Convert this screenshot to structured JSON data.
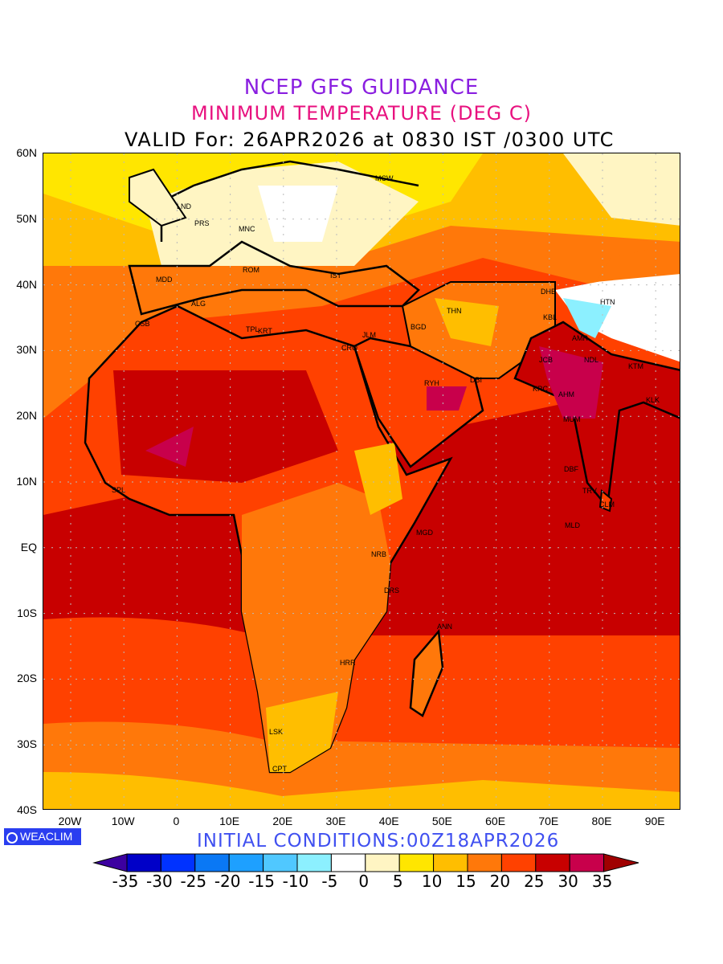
{
  "title": {
    "line1": "NCEP GFS GUIDANCE",
    "line2": "MINIMUM TEMPERATURE (DEG C)",
    "line3": "VALID For: 26APR2026 at 0830 IST /0300 UTC"
  },
  "axes": {
    "lat_labels": [
      "60N",
      "50N",
      "40N",
      "30N",
      "20N",
      "10N",
      "EQ",
      "10S",
      "20S",
      "30S",
      "40S"
    ],
    "lon_labels": [
      "20W",
      "10W",
      "0",
      "10E",
      "20E",
      "30E",
      "40E",
      "50E",
      "60E",
      "70E",
      "80E",
      "90E"
    ]
  },
  "cities": [
    "LND",
    "PRS",
    "MNC",
    "ROM",
    "MDD",
    "ALG",
    "CSB",
    "TPL",
    "KRT",
    "CRO",
    "JLM",
    "IST",
    "MCW",
    "BGD",
    "THN",
    "DHB",
    "KBL",
    "HTN",
    "AMR",
    "JCB",
    "NDL",
    "KTM",
    "RYH",
    "DBI",
    "KRC",
    "AHM",
    "KLK",
    "MUM",
    "DBF",
    "TRV",
    "CLM",
    "MLD",
    "MGD",
    "NRB",
    "DRS",
    "ANN",
    "HRR",
    "LSK",
    "CPT",
    "SPL"
  ],
  "logo": "WEACLIM",
  "initial_conditions": "INITIAL CONDITIONS:00Z18APR2026",
  "colorbar": {
    "labels": [
      "-35",
      "-30",
      "-25",
      "-20",
      "-15",
      "-10",
      "-5",
      "0",
      "5",
      "10",
      "15",
      "20",
      "25",
      "30",
      "35"
    ],
    "colors": [
      "#0000c8",
      "#0032ff",
      "#0a78f5",
      "#1ea0ff",
      "#50c8ff",
      "#8cf0ff",
      "#ffffff",
      "#fff5c3",
      "#ffe600",
      "#ffbe00",
      "#ff780a",
      "#ff4100",
      "#c80000",
      "#c8004b"
    ],
    "under_color": "#3c00a0",
    "over_color": "#a00000"
  }
}
